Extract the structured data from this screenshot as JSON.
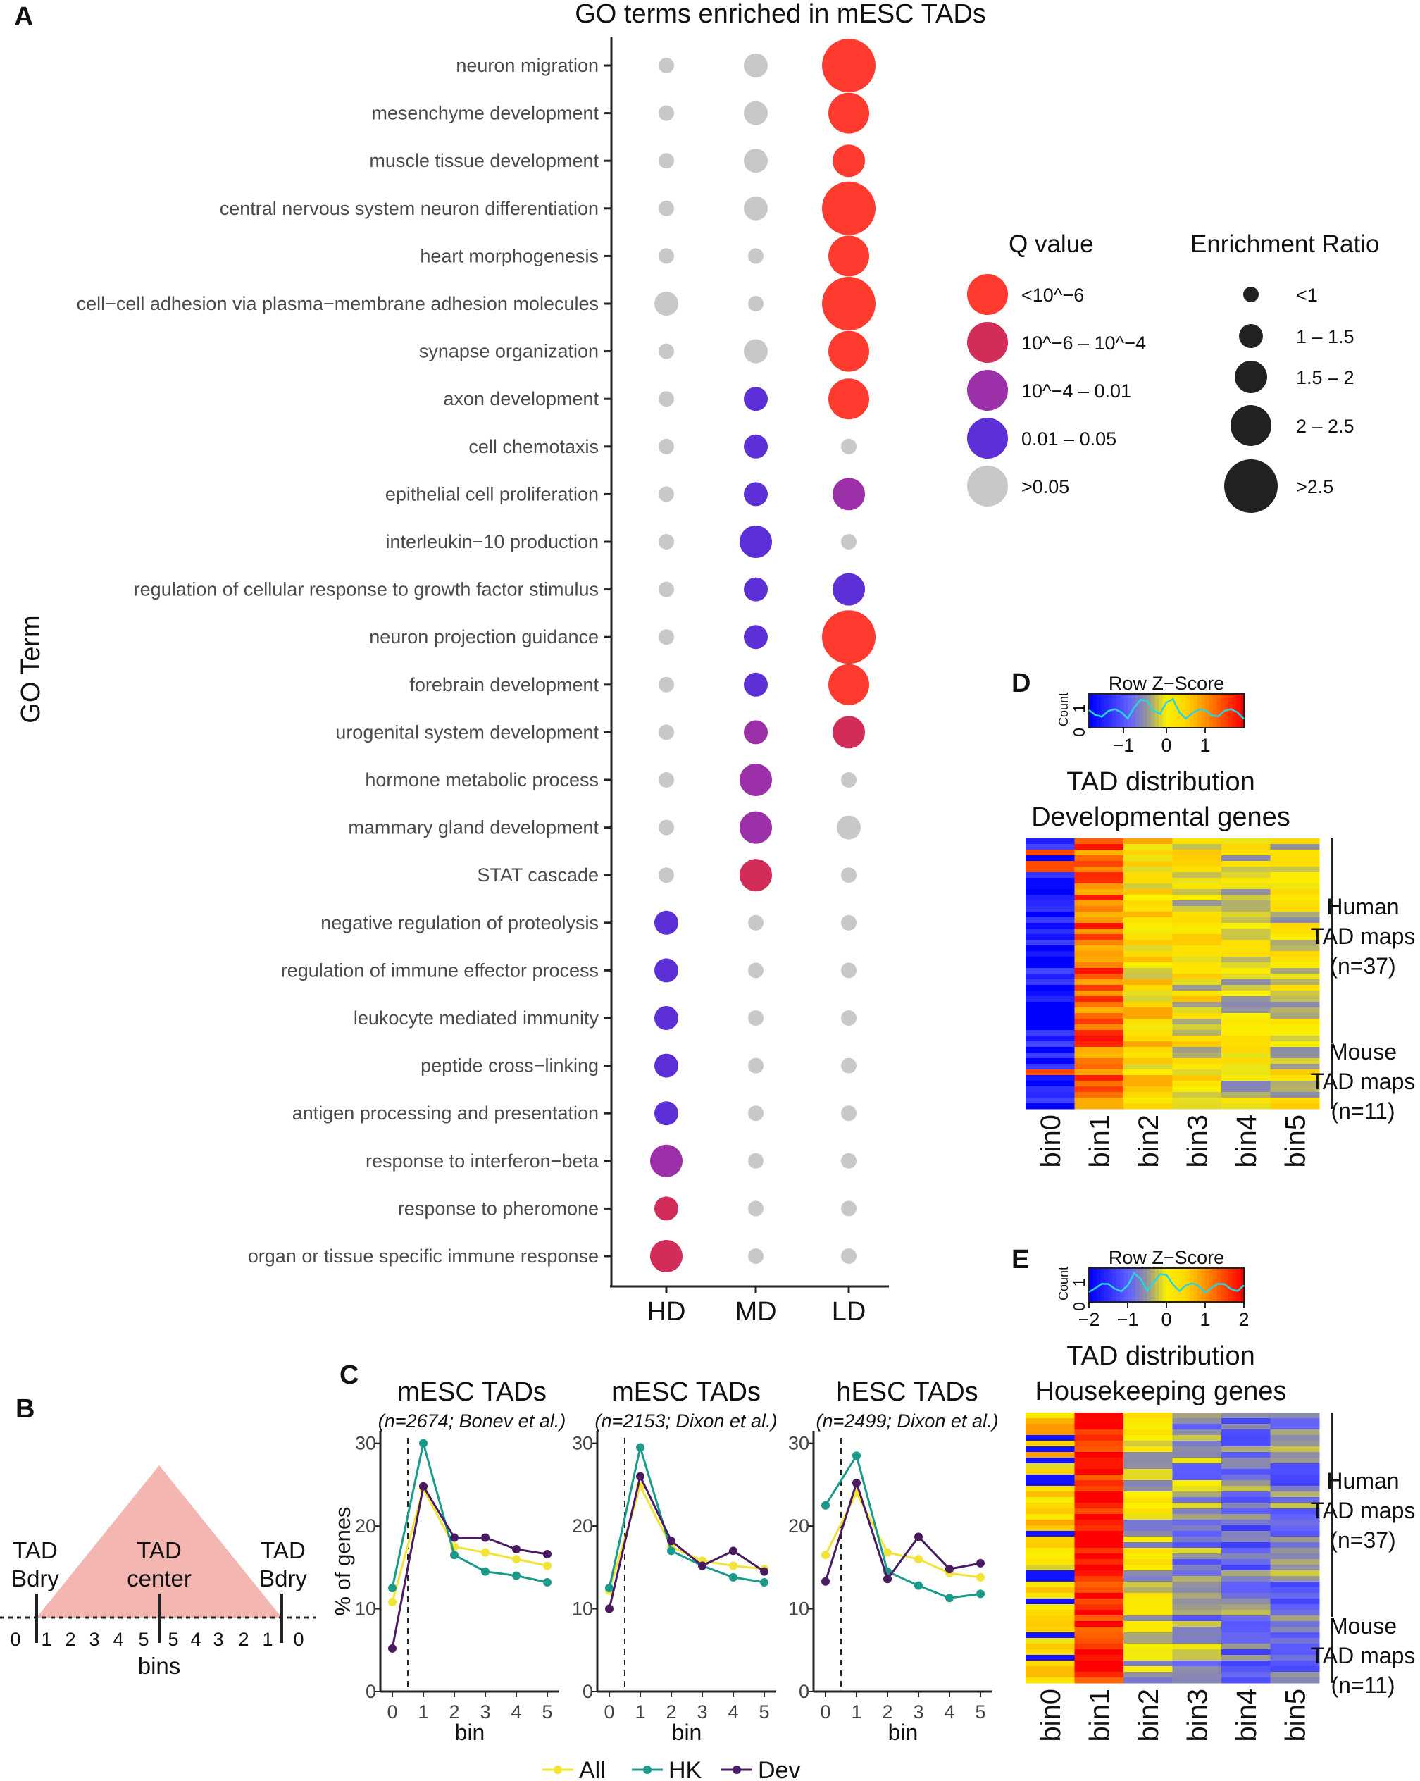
{
  "colors": {
    "q_lt_1e6": "#ff3b30",
    "q_1e6_1e4": "#d12d58",
    "q_1e4_001": "#9b30a8",
    "q_001_005": "#5d2fd6",
    "q_gt_005": "#c8c8c8",
    "all": "#f2e436",
    "hk": "#1a9a8a",
    "dev": "#4a1a62",
    "tad_fill": "#f4b6b0"
  },
  "panels": {
    "A": "A",
    "B": "B",
    "C": "C",
    "D": "D",
    "E": "E"
  },
  "chart_data": [
    {
      "type": "scatter",
      "id": "A",
      "title": "GO terms enriched in mESC TADs",
      "ylabel": "GO Term",
      "xlabel": "",
      "categories": [
        "HD",
        "MD",
        "LD"
      ],
      "q_codes": {
        "R": "<10^−6",
        "M": "10^−6 – 10^−4",
        "P": "10^−4 – 0.01",
        "B": "0.01 – 0.05",
        "G": ">0.05"
      },
      "rows": [
        {
          "term": "neuron migration",
          "q": [
            "G",
            "G",
            "R"
          ],
          "er": [
            0,
            1,
            4
          ]
        },
        {
          "term": "mesenchyme development",
          "q": [
            "G",
            "G",
            "R"
          ],
          "er": [
            0,
            1,
            3
          ]
        },
        {
          "term": "muscle tissue development",
          "q": [
            "G",
            "G",
            "R"
          ],
          "er": [
            0,
            1,
            2
          ]
        },
        {
          "term": "central nervous system neuron differentiation",
          "q": [
            "G",
            "G",
            "R"
          ],
          "er": [
            0,
            1,
            4
          ]
        },
        {
          "term": "heart morphogenesis",
          "q": [
            "G",
            "G",
            "R"
          ],
          "er": [
            0,
            0,
            3
          ]
        },
        {
          "term": "cell−cell adhesion via plasma−membrane adhesion molecules",
          "q": [
            "G",
            "G",
            "R"
          ],
          "er": [
            1,
            0,
            4
          ]
        },
        {
          "term": "synapse organization",
          "q": [
            "G",
            "G",
            "R"
          ],
          "er": [
            0,
            1,
            3
          ]
        },
        {
          "term": "axon development",
          "q": [
            "G",
            "B",
            "R"
          ],
          "er": [
            0,
            1,
            3
          ]
        },
        {
          "term": "cell chemotaxis",
          "q": [
            "G",
            "B",
            "G"
          ],
          "er": [
            0,
            1,
            0
          ]
        },
        {
          "term": "epithelial cell proliferation",
          "q": [
            "G",
            "B",
            "P"
          ],
          "er": [
            0,
            1,
            2
          ]
        },
        {
          "term": "interleukin−10 production",
          "q": [
            "G",
            "B",
            "G"
          ],
          "er": [
            0,
            2,
            0
          ]
        },
        {
          "term": "regulation of cellular response to growth factor stimulus",
          "q": [
            "G",
            "B",
            "B"
          ],
          "er": [
            0,
            1,
            2
          ]
        },
        {
          "term": "neuron projection guidance",
          "q": [
            "G",
            "B",
            "R"
          ],
          "er": [
            0,
            1,
            4
          ]
        },
        {
          "term": "forebrain development",
          "q": [
            "G",
            "B",
            "R"
          ],
          "er": [
            0,
            1,
            3
          ]
        },
        {
          "term": "urogenital system development",
          "q": [
            "G",
            "P",
            "M"
          ],
          "er": [
            0,
            1,
            2
          ]
        },
        {
          "term": "hormone metabolic process",
          "q": [
            "G",
            "P",
            "G"
          ],
          "er": [
            0,
            2,
            0
          ]
        },
        {
          "term": "mammary gland development",
          "q": [
            "G",
            "P",
            "G"
          ],
          "er": [
            0,
            2,
            1
          ]
        },
        {
          "term": "STAT cascade",
          "q": [
            "G",
            "M",
            "G"
          ],
          "er": [
            0,
            2,
            0
          ]
        },
        {
          "term": "negative regulation of proteolysis",
          "q": [
            "B",
            "G",
            "G"
          ],
          "er": [
            1,
            0,
            0
          ]
        },
        {
          "term": "regulation of immune effector process",
          "q": [
            "B",
            "G",
            "G"
          ],
          "er": [
            1,
            0,
            0
          ]
        },
        {
          "term": "leukocyte mediated immunity",
          "q": [
            "B",
            "G",
            "G"
          ],
          "er": [
            1,
            0,
            0
          ]
        },
        {
          "term": "peptide cross−linking",
          "q": [
            "B",
            "G",
            "G"
          ],
          "er": [
            1,
            0,
            0
          ]
        },
        {
          "term": "antigen processing and presentation",
          "q": [
            "B",
            "G",
            "G"
          ],
          "er": [
            1,
            0,
            0
          ]
        },
        {
          "term": "response to interferon−beta",
          "q": [
            "P",
            "G",
            "G"
          ],
          "er": [
            2,
            0,
            0
          ]
        },
        {
          "term": "response to pheromone",
          "q": [
            "M",
            "G",
            "G"
          ],
          "er": [
            1,
            0,
            0
          ]
        },
        {
          "term": "organ or tissue specific immune response",
          "q": [
            "M",
            "G",
            "G"
          ],
          "er": [
            2,
            0,
            0
          ]
        }
      ],
      "legend_q": {
        "title": "Q value",
        "codes": [
          "R",
          "M",
          "P",
          "B",
          "G"
        ],
        "labels": [
          "<10^−6",
          "10^−6 – 10^−4",
          "10^−4 – 0.01",
          "0.01 – 0.05",
          ">0.05"
        ]
      },
      "legend_er": {
        "title": "Enrichment Ratio",
        "labels": [
          "<1",
          "1 – 1.5",
          "1.5 – 2",
          "2 – 2.5",
          ">2.5"
        ]
      }
    },
    {
      "type": "line",
      "id": "C",
      "panels": [
        {
          "title": "mESC TADs",
          "subtitle": "(n=2674; Bonev et al.)",
          "All": [
            10.8,
            24.5,
            17.5,
            16.8,
            16.0,
            15.2
          ],
          "HK": [
            12.5,
            30.0,
            16.5,
            14.5,
            14.0,
            13.2
          ],
          "Dev": [
            5.2,
            24.8,
            18.6,
            18.6,
            17.2,
            16.6
          ]
        },
        {
          "title": "mESC TADs",
          "subtitle": "(n=2153; Dixon et al.)",
          "All": [
            12.2,
            24.8,
            17.5,
            15.8,
            15.2,
            14.8
          ],
          "HK": [
            12.5,
            29.5,
            17.0,
            15.2,
            13.8,
            13.2
          ],
          "Dev": [
            10.0,
            26.0,
            18.2,
            15.2,
            17.0,
            14.5
          ]
        },
        {
          "title": "hESC TADs",
          "subtitle": "(n=2499; Dixon et al.)",
          "All": [
            16.5,
            24.0,
            16.8,
            16.0,
            14.3,
            13.8
          ],
          "HK": [
            22.5,
            28.5,
            14.5,
            12.8,
            11.3,
            11.8
          ],
          "Dev": [
            13.3,
            25.2,
            13.6,
            18.7,
            14.8,
            15.5
          ]
        }
      ],
      "x": [
        0,
        1,
        2,
        3,
        4,
        5
      ],
      "xlabel": "bin",
      "ylabel": "% of genes",
      "yticks": [
        0,
        10,
        20,
        30
      ],
      "ylim": [
        0,
        31.5
      ],
      "dashed_x": 0.5,
      "legend": [
        "All",
        "HK",
        "Dev"
      ]
    },
    {
      "type": "heatmap",
      "id": "D",
      "title_line1": "TAD distribution",
      "title_line2": "Developmental genes",
      "colorkey_title": "Row Z−Score",
      "colorkey_ylabel": "Count",
      "colorkey_yticks": [
        "0",
        "1"
      ],
      "colorkey_xticks": [
        "−1",
        "0",
        "1"
      ],
      "columns": [
        "bin0",
        "bin1",
        "bin2",
        "bin3",
        "bin4",
        "bin5"
      ],
      "rows": 48,
      "column_mean_z": [
        -1.8,
        1.3,
        0.3,
        0.1,
        -0.1,
        0.0
      ],
      "group1": {
        "line1": "Human",
        "line2": "TAD maps",
        "line3": "(n=37)",
        "rows": 37
      },
      "group2": {
        "line1": "Mouse",
        "line2": "TAD maps",
        "line3": "(n=11)",
        "rows": 11
      }
    },
    {
      "type": "heatmap",
      "id": "E",
      "title_line1": "TAD distribution",
      "title_line2": "Housekeeping genes",
      "colorkey_title": "Row Z−Score",
      "colorkey_ylabel": "Count",
      "colorkey_yticks": [
        "0",
        "1"
      ],
      "colorkey_xticks": [
        "−2",
        "−1",
        "0",
        "1",
        "2"
      ],
      "columns": [
        "bin0",
        "bin1",
        "bin2",
        "bin3",
        "bin4",
        "bin5"
      ],
      "rows": 48,
      "column_mean_z": [
        0.4,
        1.9,
        -0.2,
        -0.6,
        -0.8,
        -0.7
      ],
      "group1": {
        "line1": "Human",
        "line2": "TAD maps",
        "line3": "(n=37)",
        "rows": 37
      },
      "group2": {
        "line1": "Mouse",
        "line2": "TAD maps",
        "line3": "(n=11)",
        "rows": 11
      }
    }
  ],
  "diagram_B": {
    "left_label_1": "TAD",
    "left_label_2": "Bdry",
    "center_label_1": "TAD",
    "center_label_2": "center",
    "right_label_1": "TAD",
    "right_label_2": "Bdry",
    "tick_labels": [
      "0",
      "1",
      "2",
      "3",
      "4",
      "5",
      "5",
      "4",
      "3",
      "2",
      "1",
      "0"
    ],
    "xlabel": "bins"
  }
}
